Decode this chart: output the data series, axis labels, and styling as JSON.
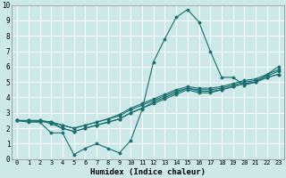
{
  "xlabel": "Humidex (Indice chaleur)",
  "ylabel": "",
  "xlim": [
    -0.5,
    23.5
  ],
  "ylim": [
    0,
    10
  ],
  "xticks": [
    0,
    1,
    2,
    3,
    4,
    5,
    6,
    7,
    8,
    9,
    10,
    11,
    12,
    13,
    14,
    15,
    16,
    17,
    18,
    19,
    20,
    21,
    22,
    23
  ],
  "yticks": [
    0,
    1,
    2,
    3,
    4,
    5,
    6,
    7,
    8,
    9,
    10
  ],
  "bg_color": "#cce8e8",
  "line_color": "#1a6e6e",
  "grid_color": "#ffffff",
  "lines": [
    {
      "x": [
        0,
        1,
        2,
        3,
        4,
        5,
        6,
        7,
        8,
        9,
        10,
        11,
        12,
        13,
        14,
        15,
        16,
        17,
        18,
        19,
        20,
        21,
        22,
        23
      ],
      "y": [
        2.5,
        2.4,
        2.4,
        1.7,
        1.7,
        0.3,
        0.7,
        1.0,
        0.7,
        0.4,
        1.2,
        3.2,
        6.3,
        7.8,
        9.2,
        9.7,
        8.9,
        7.0,
        5.3,
        5.3,
        4.8,
        5.0,
        5.5,
        6.0
      ]
    },
    {
      "x": [
        0,
        1,
        2,
        3,
        4,
        5,
        6,
        7,
        8,
        9,
        10,
        11,
        12,
        13,
        14,
        15,
        16,
        17,
        18,
        19,
        20,
        21,
        22,
        23
      ],
      "y": [
        2.5,
        2.5,
        2.5,
        2.3,
        2.0,
        1.8,
        2.0,
        2.2,
        2.4,
        2.6,
        3.0,
        3.3,
        3.7,
        4.0,
        4.3,
        4.6,
        4.4,
        4.4,
        4.5,
        4.7,
        4.9,
        5.0,
        5.3,
        5.5
      ]
    },
    {
      "x": [
        0,
        1,
        2,
        3,
        4,
        5,
        6,
        7,
        8,
        9,
        10,
        11,
        12,
        13,
        14,
        15,
        16,
        17,
        18,
        19,
        20,
        21,
        22,
        23
      ],
      "y": [
        2.5,
        2.5,
        2.5,
        2.4,
        2.2,
        2.0,
        2.2,
        2.4,
        2.6,
        2.8,
        3.2,
        3.5,
        3.8,
        4.1,
        4.4,
        4.6,
        4.5,
        4.5,
        4.6,
        4.8,
        5.0,
        5.1,
        5.4,
        5.7
      ]
    },
    {
      "x": [
        0,
        1,
        2,
        3,
        4,
        5,
        6,
        7,
        8,
        9,
        10,
        11,
        12,
        13,
        14,
        15,
        16,
        17,
        18,
        19,
        20,
        21,
        22,
        23
      ],
      "y": [
        2.5,
        2.5,
        2.5,
        2.4,
        2.2,
        2.0,
        2.2,
        2.4,
        2.6,
        2.9,
        3.3,
        3.6,
        3.9,
        4.2,
        4.5,
        4.7,
        4.6,
        4.6,
        4.7,
        4.9,
        5.1,
        5.2,
        5.5,
        5.8
      ]
    },
    {
      "x": [
        0,
        3,
        4,
        5,
        6,
        7,
        8,
        9,
        10,
        11,
        12,
        13,
        14,
        15,
        16,
        17,
        18,
        19,
        20,
        21,
        22,
        23
      ],
      "y": [
        2.5,
        2.4,
        2.0,
        1.8,
        2.0,
        2.2,
        2.4,
        2.6,
        3.0,
        3.3,
        3.6,
        3.9,
        4.2,
        4.5,
        4.3,
        4.3,
        4.5,
        4.7,
        4.9,
        5.0,
        5.3,
        5.5
      ]
    }
  ],
  "marker": "D",
  "marker_size": 1.5,
  "line_width": 0.8,
  "tick_fontsize": 5.0,
  "xlabel_fontsize": 6.5
}
